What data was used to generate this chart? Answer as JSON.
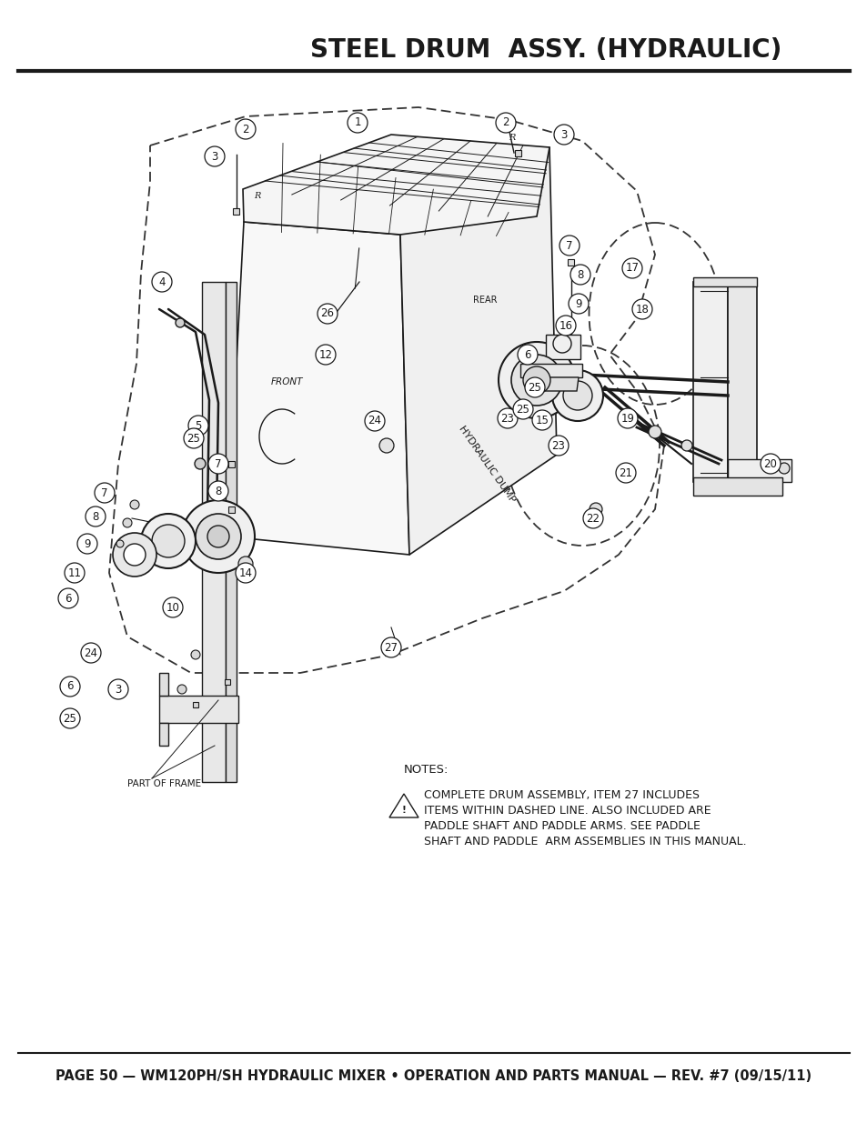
{
  "title": "STEEL DRUM  ASSY. (HYDRAULIC)",
  "footer": "PAGE 50 — WM120PH/SH HYDRAULIC MIXER • OPERATION AND PARTS MANUAL — REV. #7 (09/15/11)",
  "notes_title": "NOTES:",
  "notes_line1": "COMPLETE DRUM ASSEMBLY, ITEM 27 INCLUDES",
  "notes_line2": "ITEMS WITHIN DASHED LINE. ALSO INCLUDED ARE",
  "notes_line3": "PADDLE SHAFT AND PADDLE ARMS. SEE PADDLE",
  "notes_line4": "SHAFT AND PADDLE  ARM ASSEMBLIES IN THIS MANUAL.",
  "part_of_frame": "PART OF FRAME",
  "background_color": "#ffffff",
  "title_color": "#1a1a1a",
  "line_color": "#1a1a1a",
  "text_color": "#1a1a1a",
  "title_fontsize": 20,
  "footer_fontsize": 10.5,
  "notes_fontsize": 9.0,
  "diagram_scale": 1.0
}
